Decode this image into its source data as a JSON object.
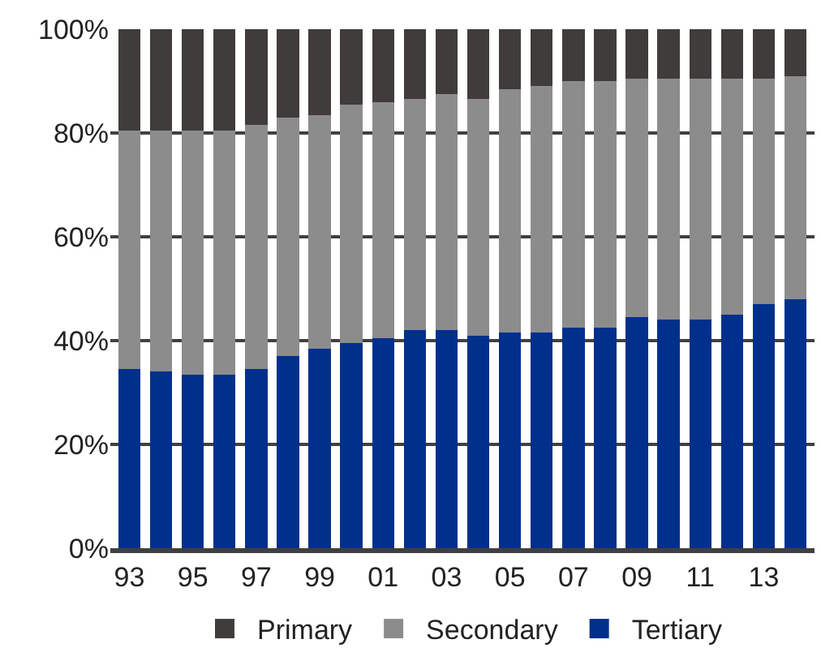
{
  "chart_data": {
    "type": "bar",
    "stacked": true,
    "categories": [
      "93",
      null,
      "95",
      null,
      "97",
      null,
      "99",
      null,
      "01",
      null,
      "03",
      null,
      "05",
      null,
      "07",
      null,
      "09",
      null,
      "11",
      null,
      "13",
      null
    ],
    "series": [
      {
        "name": "Tertiary",
        "color": "#00308c",
        "values": [
          34.5,
          34,
          33.5,
          33.5,
          34.5,
          37,
          38.5,
          39.5,
          40.5,
          42,
          42,
          41,
          41.5,
          41.5,
          42.5,
          42.5,
          44.5,
          44,
          44,
          45,
          47,
          48
        ]
      },
      {
        "name": "Secondary",
        "color": "#8c8c8c",
        "values": [
          46,
          46.5,
          47,
          47,
          47,
          46,
          45,
          46,
          45.5,
          44.5,
          45.5,
          45.5,
          47,
          47.5,
          47.5,
          47.5,
          46,
          46.5,
          46.5,
          45.5,
          43.5,
          43
        ]
      },
      {
        "name": "Primary",
        "color": "#403c3c",
        "values": [
          19.5,
          19.5,
          19.5,
          19.5,
          18.5,
          17,
          16.5,
          14.5,
          14,
          13.5,
          12.5,
          13.5,
          11.5,
          11,
          10,
          10,
          9.5,
          9.5,
          9.5,
          9.5,
          9.5,
          9
        ]
      }
    ],
    "ylim": [
      0,
      100
    ],
    "yticks": [
      {
        "value": 0,
        "label": "0%"
      },
      {
        "value": 20,
        "label": "20%"
      },
      {
        "value": 40,
        "label": "40%"
      },
      {
        "value": 60,
        "label": "60%"
      },
      {
        "value": 80,
        "label": "80%"
      },
      {
        "value": 100,
        "label": "100%"
      }
    ],
    "grid": "y",
    "legend": "bottom"
  }
}
